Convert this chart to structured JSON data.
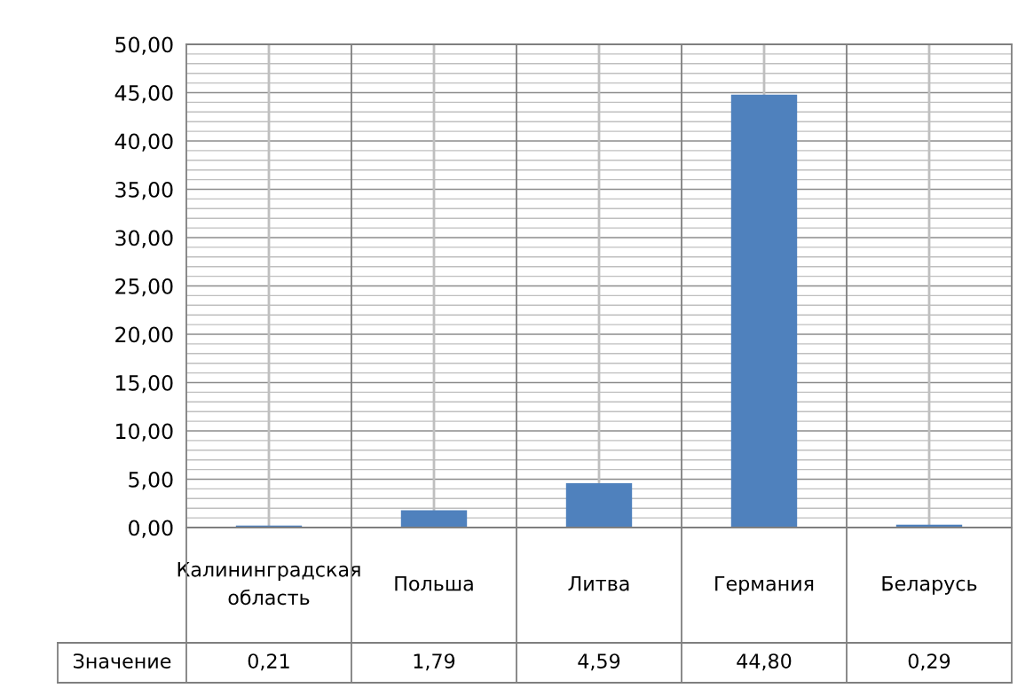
{
  "chart_data": {
    "type": "bar",
    "categories": [
      "Калининградская область",
      "Польша",
      "Литва",
      "Германия",
      "Беларусь"
    ],
    "series": [
      {
        "name": "Значение",
        "color": "#4f81bd",
        "values": [
          0.21,
          1.79,
          4.59,
          44.8,
          0.29
        ],
        "value_labels": [
          "0,21",
          "1,79",
          "4,59",
          "44,80",
          "0,29"
        ]
      }
    ],
    "ylim": [
      0,
      50
    ],
    "yticks": [
      {
        "value": 0,
        "label": "0,00"
      },
      {
        "value": 5,
        "label": "5,00"
      },
      {
        "value": 10,
        "label": "10,00"
      },
      {
        "value": 15,
        "label": "15,00"
      },
      {
        "value": 20,
        "label": "20,00"
      },
      {
        "value": 25,
        "label": "25,00"
      },
      {
        "value": 30,
        "label": "30,00"
      },
      {
        "value": 35,
        "label": "35,00"
      },
      {
        "value": 40,
        "label": "40,00"
      },
      {
        "value": 45,
        "label": "45,00"
      },
      {
        "value": 50,
        "label": "50,00"
      }
    ],
    "grid": true
  }
}
